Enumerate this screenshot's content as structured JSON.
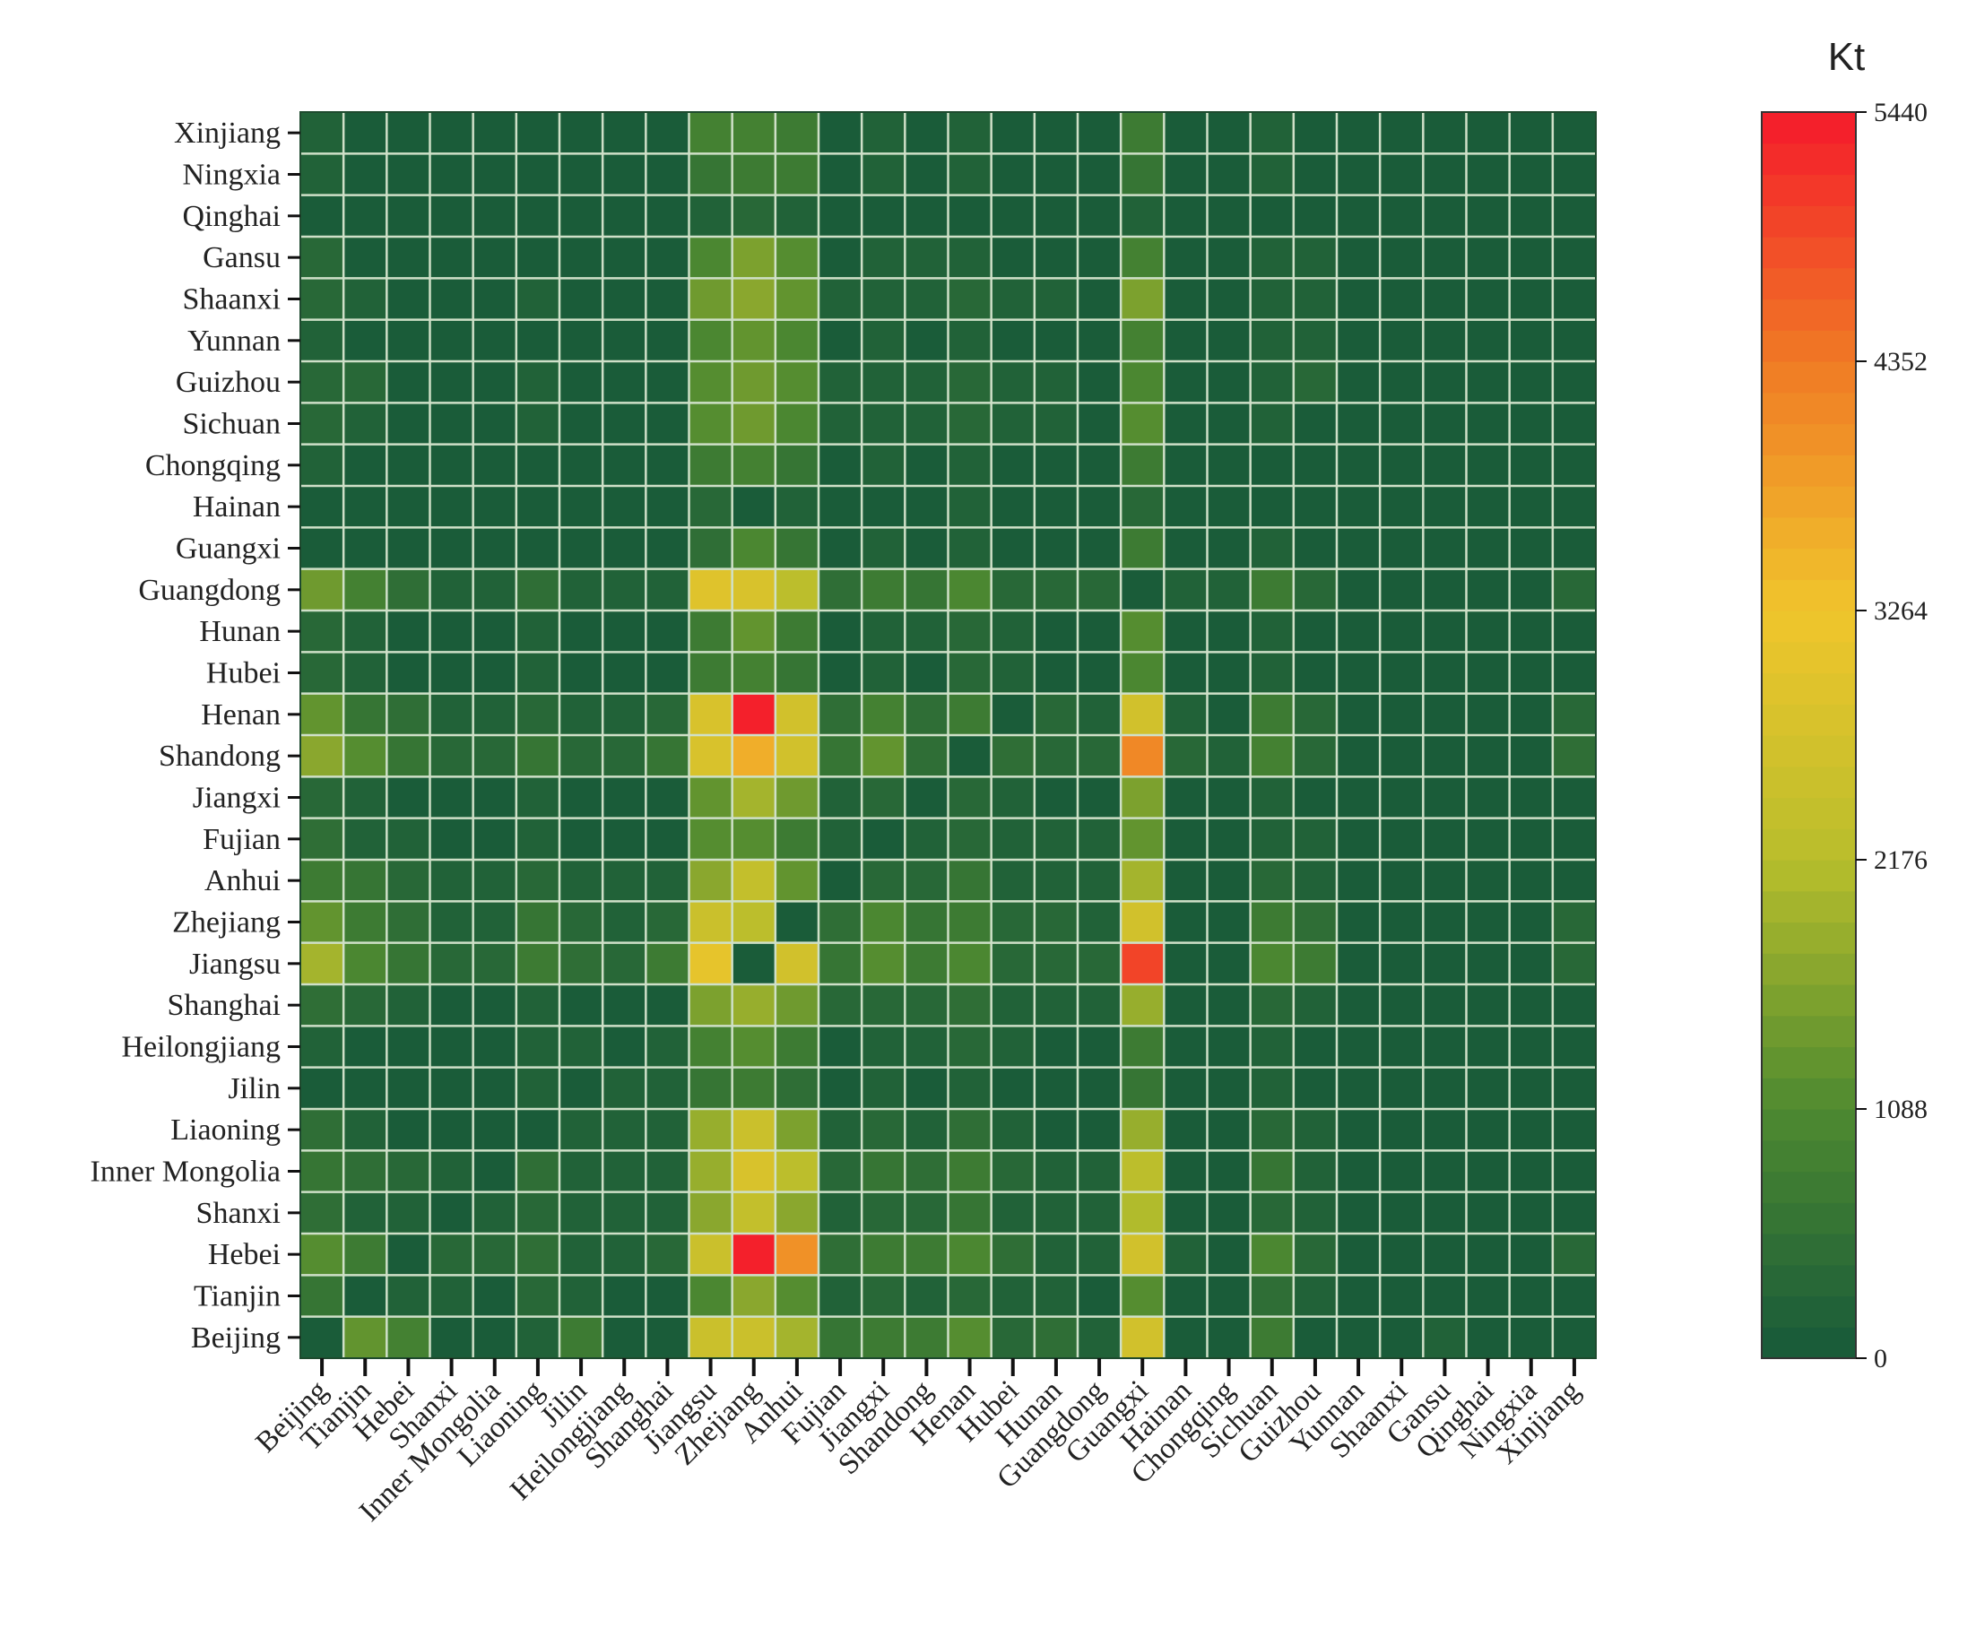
{
  "chart_data": {
    "type": "heatmap",
    "title": "",
    "xlabel": "",
    "ylabel": "",
    "colorbar": {
      "unit": "Kt",
      "min": 0,
      "max": 5440,
      "ticks": [
        0,
        1088,
        2176,
        3264,
        4352,
        5440
      ],
      "tick_labels": [
        "0",
        "1088",
        "2176",
        "3264",
        "4352",
        "5440"
      ],
      "bands": 40,
      "colors": [
        "#17593a",
        "#4e8a30",
        "#b8be2c",
        "#f0c52c",
        "#f07a25",
        "#f41a2b"
      ]
    },
    "grid": true,
    "grid_color": "#cfe0c8",
    "x_categories": [
      "Beijing",
      "Tianjin",
      "Hebei",
      "Shanxi",
      "Inner Mongolia",
      "Liaoning",
      "Jilin",
      "Heilongjiang",
      "Shanghai",
      "Jiangsu",
      "Zhejiang",
      "Anhui",
      "Fujian",
      "Jiangxi",
      "Shandong",
      "Henan",
      "Hubei",
      "Hunan",
      "Guangdong",
      "Guangxi",
      "Hainan",
      "Chongqing",
      "Sichuan",
      "Guizhou",
      "Yunnan",
      "Shaanxi",
      "Gansu",
      "Qinghai",
      "Ningxia",
      "Xinjiang"
    ],
    "y_categories": [
      "Beijing",
      "Tianjin",
      "Hebei",
      "Shanxi",
      "Inner Mongolia",
      "Liaoning",
      "Jilin",
      "Heilongjiang",
      "Shanghai",
      "Jiangsu",
      "Zhejiang",
      "Anhui",
      "Fujian",
      "Jiangxi",
      "Shandong",
      "Henan",
      "Hubei",
      "Hunan",
      "Guangdong",
      "Guangxi",
      "Hainan",
      "Chongqing",
      "Sichuan",
      "Guizhou",
      "Yunnan",
      "Shaanxi",
      "Gansu",
      "Qinghai",
      "Ningxia",
      "Xinjiang"
    ],
    "values": [
      [
        0,
        1250,
        950,
        100,
        100,
        250,
        800,
        100,
        100,
        2450,
        2550,
        2000,
        600,
        700,
        800,
        1100,
        350,
        450,
        200,
        2650,
        80,
        80,
        750,
        100,
        80,
        80,
        200,
        80,
        80,
        80
      ],
      [
        550,
        0,
        200,
        150,
        100,
        300,
        150,
        100,
        100,
        1050,
        1700,
        1200,
        200,
        300,
        200,
        400,
        200,
        150,
        100,
        1100,
        80,
        80,
        450,
        150,
        80,
        80,
        80,
        80,
        80,
        80
      ],
      [
        1200,
        750,
        0,
        300,
        300,
        500,
        200,
        200,
        400,
        2450,
        5400,
        4050,
        500,
        800,
        700,
        1000,
        500,
        200,
        150,
        2700,
        150,
        80,
        1000,
        400,
        80,
        80,
        80,
        80,
        80,
        300
      ],
      [
        500,
        250,
        150,
        0,
        150,
        350,
        150,
        150,
        150,
        1700,
        2400,
        1700,
        250,
        400,
        300,
        650,
        200,
        150,
        150,
        2100,
        80,
        80,
        350,
        200,
        80,
        80,
        80,
        80,
        80,
        80
      ],
      [
        650,
        450,
        300,
        150,
        0,
        450,
        200,
        200,
        150,
        1850,
        2850,
        2300,
        350,
        550,
        500,
        800,
        300,
        250,
        150,
        2300,
        80,
        80,
        600,
        250,
        80,
        80,
        80,
        80,
        80,
        100
      ],
      [
        500,
        250,
        100,
        100,
        100,
        0,
        150,
        200,
        150,
        1800,
        2500,
        1600,
        200,
        300,
        250,
        500,
        200,
        100,
        100,
        1800,
        80,
        80,
        300,
        150,
        80,
        80,
        80,
        80,
        80,
        80
      ],
      [
        100,
        100,
        100,
        100,
        100,
        150,
        0,
        200,
        150,
        600,
        800,
        500,
        100,
        150,
        100,
        250,
        100,
        100,
        100,
        600,
        80,
        80,
        150,
        80,
        80,
        80,
        80,
        80,
        80,
        80
      ],
      [
        150,
        100,
        100,
        100,
        100,
        150,
        150,
        0,
        150,
        900,
        1100,
        800,
        100,
        200,
        150,
        300,
        150,
        100,
        100,
        700,
        80,
        80,
        200,
        80,
        80,
        80,
        80,
        80,
        80,
        80
      ],
      [
        500,
        400,
        150,
        100,
        100,
        200,
        100,
        100,
        0,
        1600,
        1800,
        1400,
        300,
        400,
        300,
        500,
        200,
        200,
        150,
        1900,
        80,
        80,
        400,
        200,
        80,
        80,
        80,
        80,
        80,
        80
      ],
      [
        1950,
        1000,
        600,
        300,
        300,
        800,
        500,
        300,
        750,
        3000,
        0,
        2600,
        600,
        1100,
        700,
        1000,
        400,
        400,
        400,
        4900,
        80,
        80,
        1000,
        700,
        80,
        80,
        80,
        80,
        80,
        400
      ],
      [
        1300,
        800,
        500,
        200,
        200,
        600,
        300,
        200,
        300,
        2450,
        2200,
        0,
        500,
        1000,
        600,
        800,
        300,
        300,
        200,
        2700,
        80,
        80,
        700,
        500,
        80,
        80,
        80,
        80,
        80,
        350
      ],
      [
        800,
        550,
        350,
        150,
        150,
        300,
        150,
        150,
        150,
        1700,
        2400,
        1250,
        0,
        400,
        300,
        600,
        200,
        200,
        200,
        2000,
        80,
        80,
        400,
        250,
        80,
        80,
        80,
        80,
        80,
        80
      ],
      [
        450,
        200,
        150,
        100,
        100,
        200,
        100,
        100,
        100,
        1100,
        1200,
        700,
        200,
        0,
        200,
        400,
        150,
        150,
        150,
        1300,
        80,
        80,
        250,
        150,
        80,
        80,
        80,
        80,
        80,
        80
      ],
      [
        350,
        150,
        100,
        100,
        100,
        150,
        100,
        100,
        100,
        1300,
        2000,
        1400,
        200,
        300,
        0,
        350,
        150,
        100,
        100,
        1500,
        80,
        80,
        200,
        100,
        80,
        80,
        80,
        80,
        80,
        80
      ],
      [
        1750,
        1150,
        550,
        300,
        300,
        650,
        300,
        300,
        550,
        2850,
        3650,
        2600,
        600,
        1300,
        500,
        0,
        500,
        300,
        300,
        4100,
        300,
        200,
        900,
        400,
        80,
        80,
        80,
        80,
        80,
        500
      ],
      [
        1350,
        650,
        500,
        200,
        200,
        400,
        200,
        200,
        300,
        2750,
        5400,
        2700,
        500,
        850,
        500,
        750,
        0,
        300,
        200,
        2700,
        200,
        100,
        800,
        300,
        80,
        80,
        80,
        80,
        80,
        300
      ],
      [
        350,
        150,
        100,
        100,
        100,
        150,
        100,
        100,
        100,
        800,
        950,
        550,
        100,
        200,
        100,
        300,
        150,
        0,
        100,
        1000,
        80,
        80,
        200,
        100,
        80,
        80,
        80,
        80,
        80,
        80
      ],
      [
        350,
        150,
        100,
        100,
        100,
        150,
        100,
        100,
        100,
        700,
        1300,
        700,
        100,
        200,
        150,
        350,
        150,
        100,
        0,
        1100,
        80,
        80,
        200,
        100,
        80,
        80,
        80,
        80,
        80,
        80
      ],
      [
        1400,
        900,
        500,
        200,
        200,
        500,
        200,
        200,
        200,
        2900,
        2850,
        2300,
        500,
        800,
        650,
        1000,
        400,
        300,
        400,
        0,
        200,
        200,
        800,
        400,
        80,
        80,
        80,
        80,
        80,
        300
      ],
      [
        80,
        80,
        80,
        80,
        80,
        80,
        80,
        80,
        80,
        450,
        1000,
        650,
        80,
        150,
        80,
        200,
        80,
        80,
        80,
        800,
        0,
        80,
        150,
        80,
        80,
        80,
        80,
        80,
        80,
        80
      ],
      [
        80,
        80,
        80,
        80,
        80,
        80,
        80,
        80,
        80,
        300,
        100,
        150,
        80,
        80,
        80,
        150,
        80,
        80,
        80,
        350,
        80,
        0,
        100,
        80,
        80,
        80,
        80,
        80,
        80,
        80
      ],
      [
        250,
        100,
        80,
        80,
        80,
        100,
        80,
        80,
        80,
        800,
        950,
        650,
        100,
        150,
        100,
        200,
        80,
        100,
        80,
        800,
        80,
        80,
        0,
        100,
        80,
        80,
        80,
        80,
        80,
        80
      ],
      [
        400,
        150,
        100,
        80,
        80,
        150,
        80,
        80,
        80,
        1100,
        1400,
        1050,
        150,
        200,
        150,
        300,
        150,
        150,
        80,
        1150,
        80,
        80,
        250,
        0,
        80,
        80,
        80,
        80,
        80,
        80
      ],
      [
        300,
        300,
        100,
        80,
        80,
        150,
        80,
        80,
        80,
        1100,
        1400,
        1150,
        150,
        200,
        150,
        300,
        150,
        150,
        80,
        1050,
        80,
        80,
        250,
        300,
        0,
        80,
        80,
        80,
        80,
        80
      ],
      [
        200,
        100,
        80,
        80,
        80,
        80,
        80,
        80,
        80,
        1050,
        1300,
        1000,
        100,
        150,
        100,
        200,
        80,
        100,
        80,
        950,
        80,
        80,
        200,
        200,
        80,
        0,
        80,
        80,
        80,
        80
      ],
      [
        400,
        150,
        100,
        80,
        80,
        150,
        80,
        80,
        80,
        1400,
        1700,
        1300,
        150,
        250,
        200,
        400,
        150,
        150,
        80,
        1500,
        80,
        80,
        250,
        200,
        80,
        80,
        0,
        80,
        80,
        80
      ],
      [
        300,
        100,
        80,
        80,
        80,
        100,
        80,
        80,
        80,
        1000,
        1550,
        1100,
        100,
        200,
        150,
        250,
        100,
        100,
        80,
        950,
        80,
        80,
        200,
        250,
        80,
        80,
        80,
        0,
        80,
        80
      ],
      [
        80,
        80,
        80,
        80,
        80,
        80,
        80,
        80,
        80,
        200,
        350,
        200,
        80,
        80,
        80,
        100,
        80,
        80,
        80,
        250,
        80,
        80,
        80,
        80,
        80,
        80,
        80,
        80,
        0,
        80
      ],
      [
        200,
        100,
        80,
        80,
        80,
        80,
        80,
        80,
        80,
        650,
        750,
        800,
        80,
        150,
        100,
        150,
        80,
        80,
        80,
        600,
        80,
        80,
        150,
        80,
        80,
        80,
        80,
        80,
        0,
        80
      ],
      [
        200,
        100,
        80,
        80,
        80,
        80,
        80,
        80,
        80,
        900,
        950,
        700,
        80,
        150,
        100,
        150,
        80,
        80,
        80,
        800,
        80,
        80,
        150,
        80,
        80,
        80,
        80,
        80,
        80,
        0
      ]
    ]
  }
}
